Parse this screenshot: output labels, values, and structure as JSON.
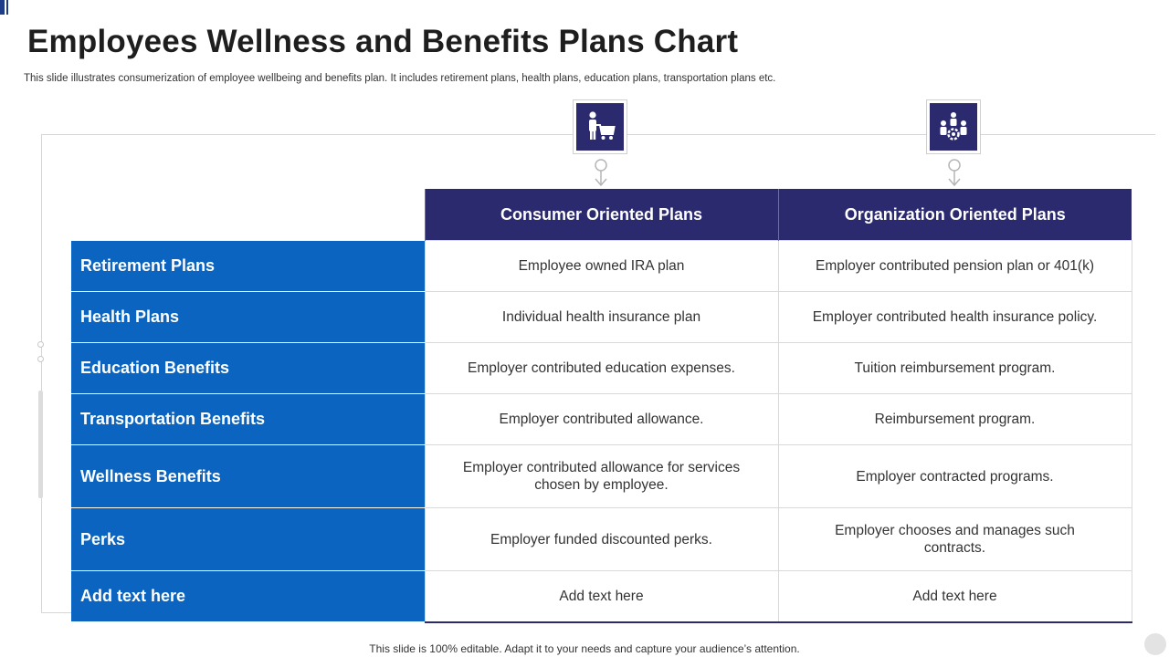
{
  "slide": {
    "title": "Employees Wellness and Benefits Plans Chart",
    "subtitle": "This slide illustrates consumerization of employee wellbeing and benefits plan. It includes retirement plans, health plans, education plans, transportation plans etc.",
    "footer": "This slide is 100% editable. Adapt it to your needs and capture your audience’s attention."
  },
  "icons": {
    "consumer": "shopper-cart-icon",
    "organization": "team-gear-icon"
  },
  "colors": {
    "header_navy": "#2b2a6f",
    "row_blue": "#0b64c0"
  },
  "table": {
    "columns": [
      "Consumer Oriented Plans",
      "Organization Oriented Plans"
    ],
    "rows": [
      {
        "label": "Retirement Plans",
        "consumer": "Employee owned IRA plan",
        "organization": "Employer contributed pension plan or 401(k)"
      },
      {
        "label": "Health Plans",
        "consumer": "Individual  health insurance plan",
        "organization": "Employer contributed health insurance policy."
      },
      {
        "label": "Education Benefits",
        "consumer": "Employer contributed education expenses.",
        "organization": "Tuition reimbursement program."
      },
      {
        "label": "Transportation Benefits",
        "consumer": "Employer contributed allowance.",
        "organization": "Reimbursement program."
      },
      {
        "label": "Wellness Benefits",
        "consumer": "Employer contributed allowance for services chosen by employee.",
        "organization": "Employer contracted programs."
      },
      {
        "label": "Perks",
        "consumer": "Employer funded discounted perks.",
        "organization": "Employer chooses and manages such contracts."
      },
      {
        "label": "Add text here",
        "consumer": "Add text here",
        "organization": "Add text here"
      }
    ]
  }
}
